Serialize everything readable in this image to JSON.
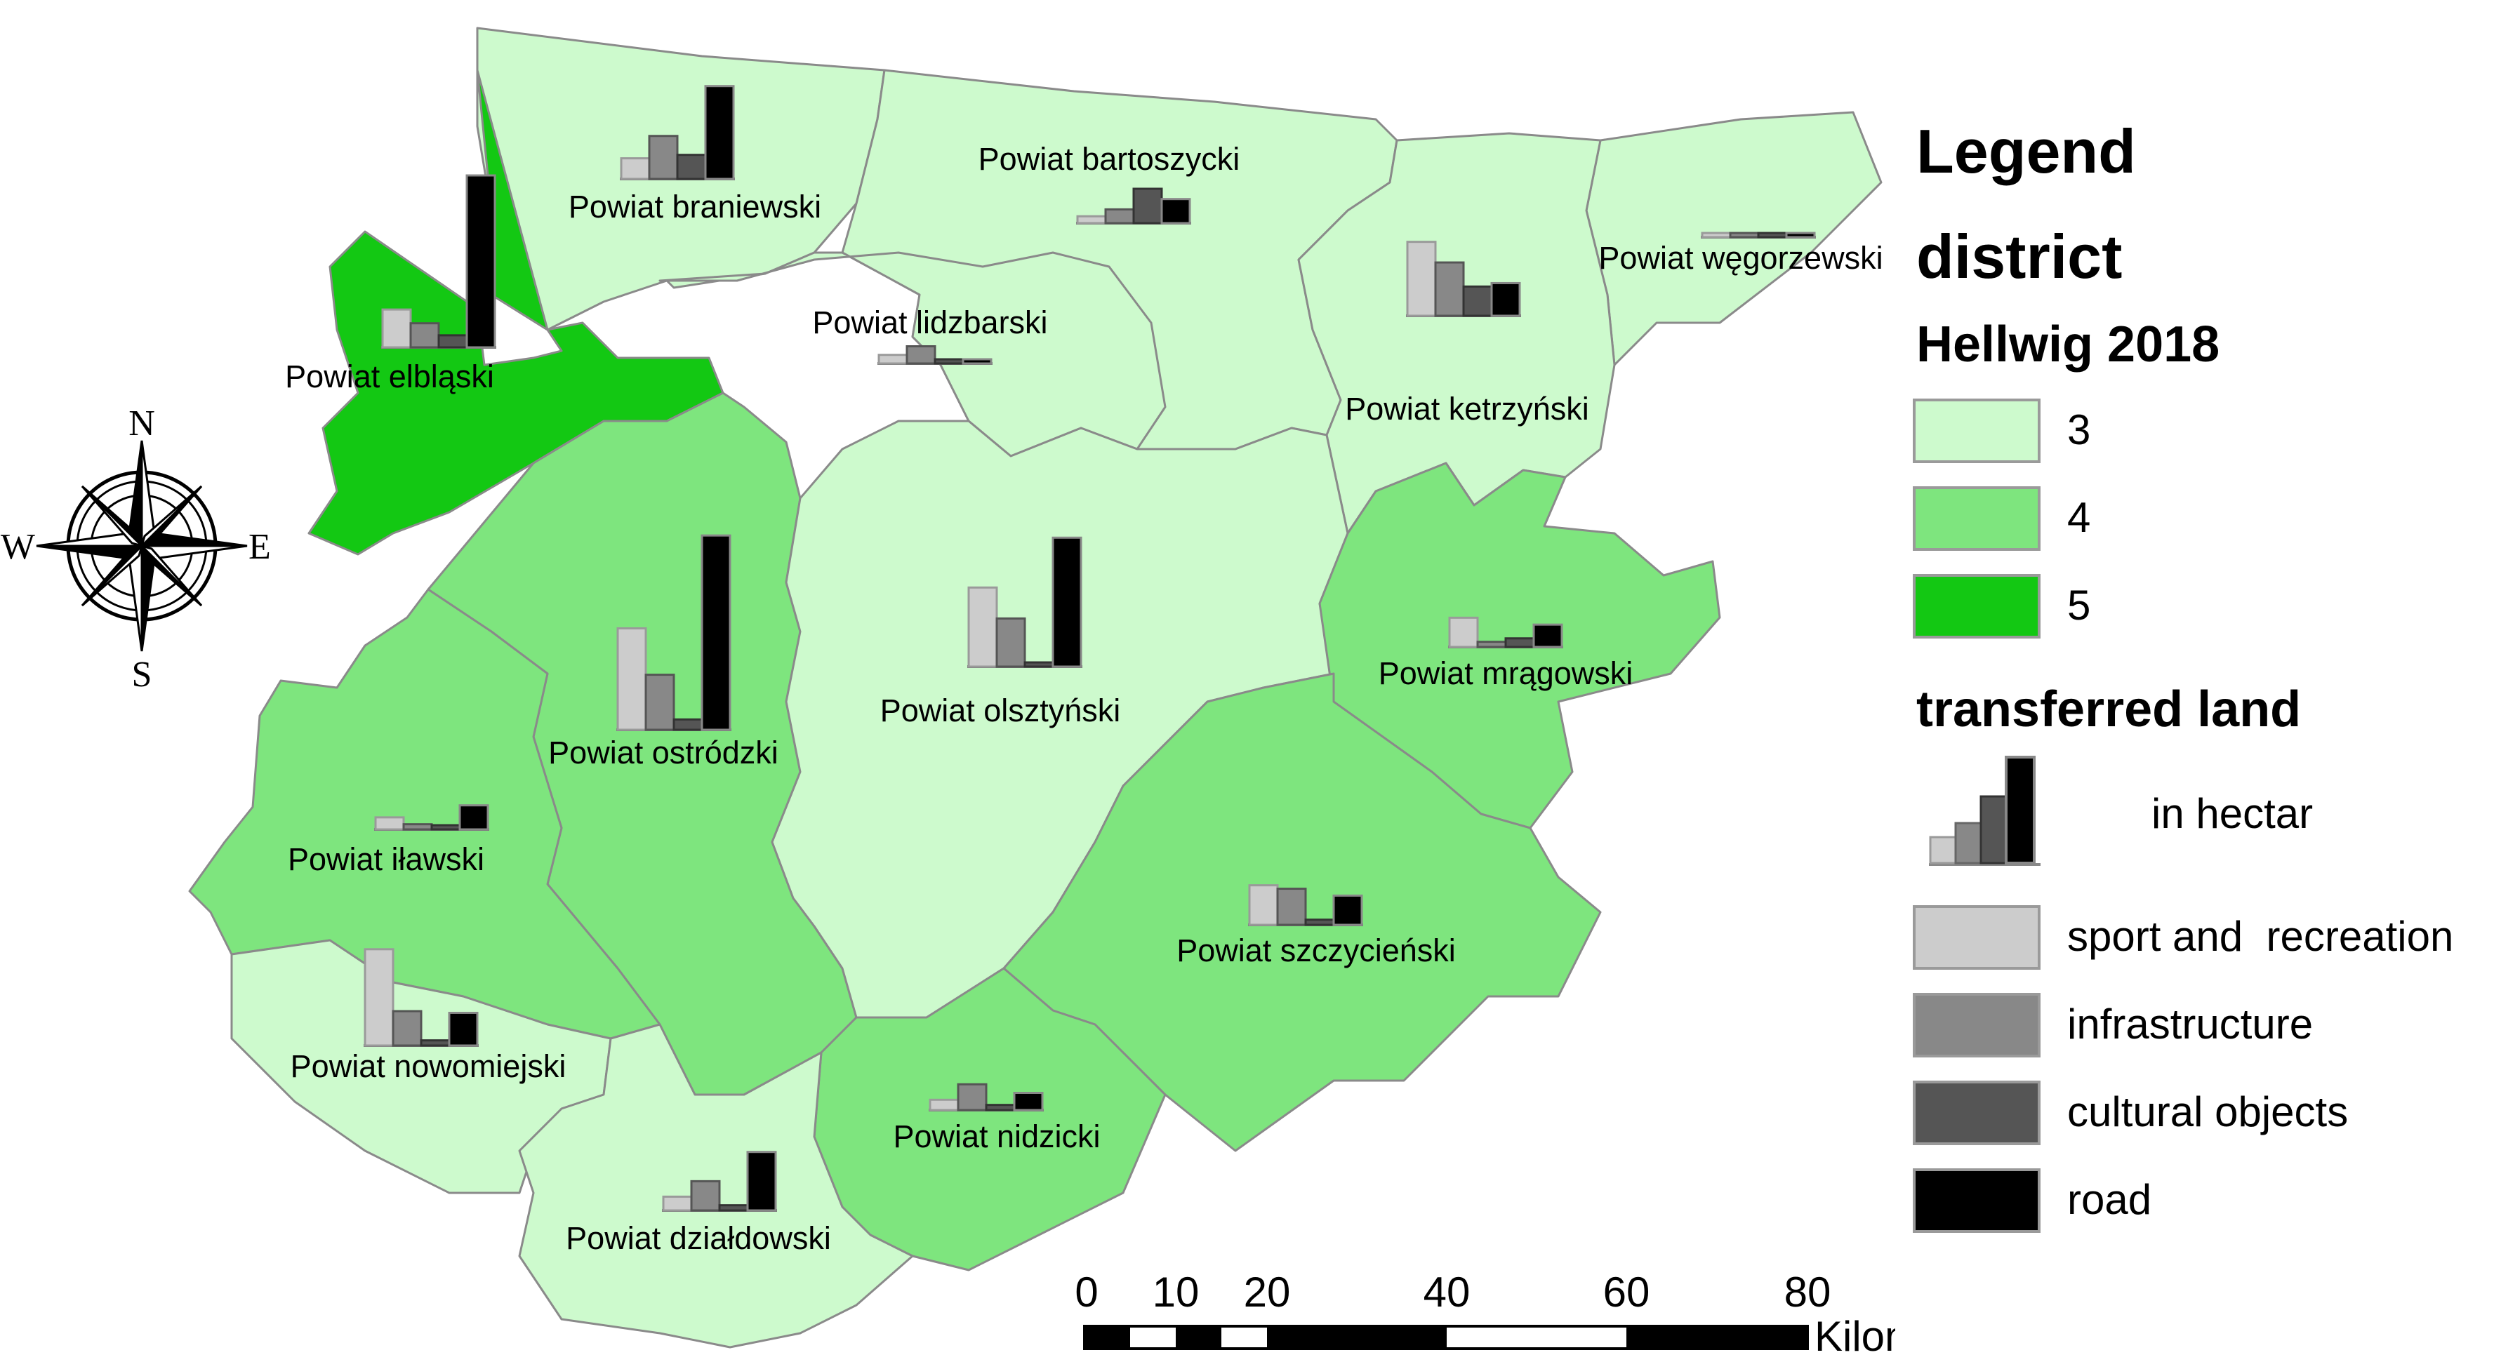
{
  "colors": {
    "class_3": "#cdfacd",
    "class_4": "#7ee57e",
    "class_5": "#13c813",
    "sport": "#cccccc",
    "infrastructure": "#888888",
    "cultural": "#555555",
    "road": "#000000",
    "border": "#8a8a8a"
  },
  "compass": {
    "n": "N",
    "s": "S",
    "e": "E",
    "w": "W"
  },
  "districts": [
    {
      "name": "Powiat braniewski",
      "hellwig_class": 3,
      "bars": [
        0.12,
        0.25,
        0.14,
        0.54
      ]
    },
    {
      "name": "Powiat bartoszycki",
      "hellwig_class": 3,
      "bars": [
        0.04,
        0.08,
        0.2,
        0.14
      ]
    },
    {
      "name": "Powiat węgorzewski",
      "hellwig_class": 3,
      "bars": [
        0.0,
        0.01,
        0.01,
        0.02
      ]
    },
    {
      "name": "Powiat elbląski",
      "hellwig_class": 5,
      "bars": [
        0.22,
        0.14,
        0.07,
        1.0
      ]
    },
    {
      "name": "Powiat lidzbarski",
      "hellwig_class": 3,
      "bars": [
        0.05,
        0.1,
        0.02,
        0.02
      ]
    },
    {
      "name": "Powiat ketrzyński",
      "hellwig_class": 3,
      "bars": [
        0.43,
        0.31,
        0.17,
        0.19
      ]
    },
    {
      "name": "Powiat ostródzki",
      "hellwig_class": 4,
      "bars": [
        0.59,
        0.32,
        0.06,
        1.13
      ]
    },
    {
      "name": "Powiat olsztyński",
      "hellwig_class": 3,
      "bars": [
        0.46,
        0.28,
        0.02,
        0.75
      ]
    },
    {
      "name": "Powiat mrągowski",
      "hellwig_class": 4,
      "bars": [
        0.17,
        0.03,
        0.05,
        0.13
      ]
    },
    {
      "name": "Powiat iławski",
      "hellwig_class": 4,
      "bars": [
        0.07,
        0.03,
        0.02,
        0.14
      ]
    },
    {
      "name": "Powiat szczycieński",
      "hellwig_class": 4,
      "bars": [
        0.23,
        0.21,
        0.03,
        0.17
      ]
    },
    {
      "name": "Powiat nowomiejski",
      "hellwig_class": 3,
      "bars": [
        0.56,
        0.2,
        0.03,
        0.19
      ]
    },
    {
      "name": "Powiat nidzicki",
      "hellwig_class": 4,
      "bars": [
        0.06,
        0.15,
        0.03,
        0.1
      ]
    },
    {
      "name": "Powiat działdowski",
      "hellwig_class": 3,
      "bars": [
        0.08,
        0.17,
        0.03,
        0.34
      ]
    }
  ],
  "scale": {
    "ticks": [
      "0",
      "10",
      "20",
      "40",
      "60",
      "80"
    ],
    "unit": "Kilometers"
  },
  "legend": {
    "title": "Legend",
    "district_heading": "district",
    "hellwig_heading": "Hellwig 2018",
    "classes": [
      {
        "label": "3",
        "color": "#cdfacd"
      },
      {
        "label": "4",
        "color": "#7ee57e"
      },
      {
        "label": "5",
        "color": "#13c813"
      }
    ],
    "transferred_heading": "transferred land",
    "unit_label": "in hectar",
    "categories": [
      {
        "label": "sport and  recreation",
        "color": "#cccccc"
      },
      {
        "label": "infrastructure",
        "color": "#888888"
      },
      {
        "label": "cultural objects",
        "color": "#555555"
      },
      {
        "label": "road",
        "color": "#000000"
      }
    ]
  }
}
